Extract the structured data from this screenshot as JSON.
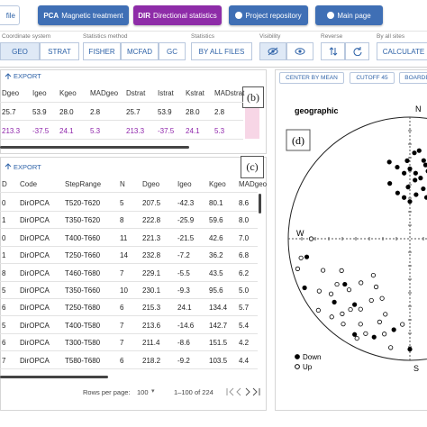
{
  "toolbar": {
    "file_button": "file",
    "buttons": [
      {
        "tag": "PCA",
        "label": "Magnetic treatment"
      },
      {
        "tag": "DIR",
        "label": "Directional statistics"
      },
      {
        "label": "Project repository"
      },
      {
        "label": "Main page"
      }
    ]
  },
  "controls": [
    {
      "label": "Coordinate system",
      "options": [
        "GEO",
        "STRAT"
      ]
    },
    {
      "label": "Statistics method",
      "options": [
        "FISHER",
        "MCFAD",
        "GC"
      ]
    },
    {
      "label": "Statistics",
      "options": [
        "BY ALL FILES"
      ]
    },
    {
      "label": "Visibility"
    },
    {
      "label": "Reverse"
    },
    {
      "label": "By all sites",
      "options": [
        "CALCULATE"
      ]
    }
  ],
  "stats_table": {
    "export": "EXPORT",
    "panel_label": "(b)",
    "columns": [
      "Dgeo",
      "Igeo",
      "Kgeo",
      "MADgeo",
      "Dstrat",
      "Istrat",
      "Kstrat",
      "MADstrat"
    ],
    "rows": [
      [
        "25.7",
        "53.9",
        "28.0",
        "2.8",
        "25.7",
        "53.9",
        "28.0",
        "2.8"
      ],
      [
        "213.3",
        "-37.5",
        "24.1",
        "5.3",
        "213.3",
        "-37.5",
        "24.1",
        "5.3"
      ]
    ]
  },
  "steps_table": {
    "export": "EXPORT",
    "panel_label": "(c)",
    "columns": [
      "D",
      "Code",
      "StepRange",
      "N",
      "Dgeo",
      "Igeo",
      "Kgeo",
      "MADgeo"
    ],
    "rows": [
      [
        "0",
        "DirOPCA",
        "T520-T620",
        "5",
        "207.5",
        "-42.3",
        "80.1",
        "8.6"
      ],
      [
        "1",
        "DirOPCA",
        "T350-T620",
        "8",
        "222.8",
        "-25.9",
        "59.6",
        "8.0"
      ],
      [
        "0",
        "DirOPCA",
        "T400-T660",
        "11",
        "221.3",
        "-21.5",
        "42.6",
        "7.0"
      ],
      [
        "1",
        "DirOPCA",
        "T250-T660",
        "14",
        "232.8",
        "-7.2",
        "36.2",
        "6.8"
      ],
      [
        "8",
        "DirOPCA",
        "T460-T680",
        "7",
        "229.1",
        "-5.5",
        "43.5",
        "6.2"
      ],
      [
        "5",
        "DirOPCA",
        "T350-T660",
        "10",
        "230.1",
        "-9.3",
        "95.6",
        "5.0"
      ],
      [
        "6",
        "DirOPCA",
        "T250-T680",
        "6",
        "215.3",
        "24.1",
        "134.4",
        "5.7"
      ],
      [
        "5",
        "DirOPCA",
        "T400-T580",
        "7",
        "213.6",
        "-14.6",
        "142.7",
        "5.4"
      ],
      [
        "6",
        "DirOPCA",
        "T300-T580",
        "7",
        "211.4",
        "-8.6",
        "151.5",
        "4.2"
      ],
      [
        "7",
        "DirOPCA",
        "T580-T680",
        "6",
        "218.2",
        "-9.2",
        "103.5",
        "4.4"
      ]
    ],
    "footer": {
      "rows_per_page": "Rows per page:",
      "page_size": "100",
      "range": "1–100 of 224"
    }
  },
  "stereonet": {
    "buttons": [
      "CENTER BY MEAN",
      "CUTOFF 45",
      "BOARDE"
    ],
    "title": "geographic",
    "panel_label": "(d)",
    "north": "N",
    "west": "W",
    "south": "S",
    "legend": {
      "down": "Down",
      "up": "Up"
    },
    "down": [
      {
        "dec": 350,
        "inc": 40
      },
      {
        "dec": 355,
        "inc": 45
      },
      {
        "dec": 5,
        "inc": 50
      },
      {
        "dec": 10,
        "inc": 48
      },
      {
        "dec": 0,
        "inc": 42
      },
      {
        "dec": 15,
        "inc": 55
      },
      {
        "dec": 358,
        "inc": 55
      },
      {
        "dec": 345,
        "inc": 35
      },
      {
        "dec": 8,
        "inc": 60
      },
      {
        "dec": 12,
        "inc": 38
      },
      {
        "dec": 3,
        "inc": 30
      },
      {
        "dec": 352,
        "inc": 62
      },
      {
        "dec": 20,
        "inc": 45
      },
      {
        "dec": 18,
        "inc": 33
      },
      {
        "dec": 6,
        "inc": 28
      },
      {
        "dec": 340,
        "inc": 50
      },
      {
        "dec": 0,
        "inc": 65
      },
      {
        "dec": 25,
        "inc": 50
      },
      {
        "dec": 15,
        "inc": 42
      },
      {
        "dec": 345,
        "inc": 58
      },
      {
        "dec": 10,
        "inc": 35
      },
      {
        "dec": 30,
        "inc": 40
      },
      {
        "dec": 358,
        "inc": 36
      },
      {
        "dec": 22,
        "inc": 60
      },
      {
        "dec": 5,
        "inc": 45
      },
      {
        "dec": 210,
        "inc": 10
      },
      {
        "dec": 230,
        "inc": 20
      },
      {
        "dec": 200,
        "inc": 15
      },
      {
        "dec": 245,
        "inc": 5
      },
      {
        "dec": 220,
        "inc": 30
      },
      {
        "dec": 190,
        "inc": 25
      },
      {
        "dec": 260,
        "inc": 15
      },
      {
        "dec": 180,
        "inc": 10
      },
      {
        "dec": 235,
        "inc": 35
      }
    ],
    "up": [
      {
        "dec": 210,
        "inc": -20
      },
      {
        "dec": 220,
        "inc": -25
      },
      {
        "dec": 215,
        "inc": -30
      },
      {
        "dec": 205,
        "inc": -15
      },
      {
        "dec": 225,
        "inc": -10
      },
      {
        "dec": 230,
        "inc": -35
      },
      {
        "dec": 200,
        "inc": -28
      },
      {
        "dec": 235,
        "inc": -22
      },
      {
        "dec": 240,
        "inc": -15
      },
      {
        "dec": 212,
        "inc": -40
      },
      {
        "dec": 218,
        "inc": -12
      },
      {
        "dec": 228,
        "inc": -45
      },
      {
        "dec": 195,
        "inc": -20
      },
      {
        "dec": 250,
        "inc": -25
      },
      {
        "dec": 245,
        "inc": -38
      },
      {
        "dec": 208,
        "inc": -8
      },
      {
        "dec": 222,
        "inc": -18
      },
      {
        "dec": 232,
        "inc": -5
      },
      {
        "dec": 238,
        "inc": -30
      },
      {
        "dec": 198,
        "inc": -35
      },
      {
        "dec": 260,
        "inc": -10
      },
      {
        "dec": 190,
        "inc": -10
      },
      {
        "dec": 215,
        "inc": -50
      },
      {
        "dec": 225,
        "inc": -55
      },
      {
        "dec": 205,
        "inc": -45
      },
      {
        "dec": 270,
        "inc": -20
      },
      {
        "dec": 255,
        "inc": -5
      },
      {
        "dec": 185,
        "inc": -30
      }
    ]
  }
}
